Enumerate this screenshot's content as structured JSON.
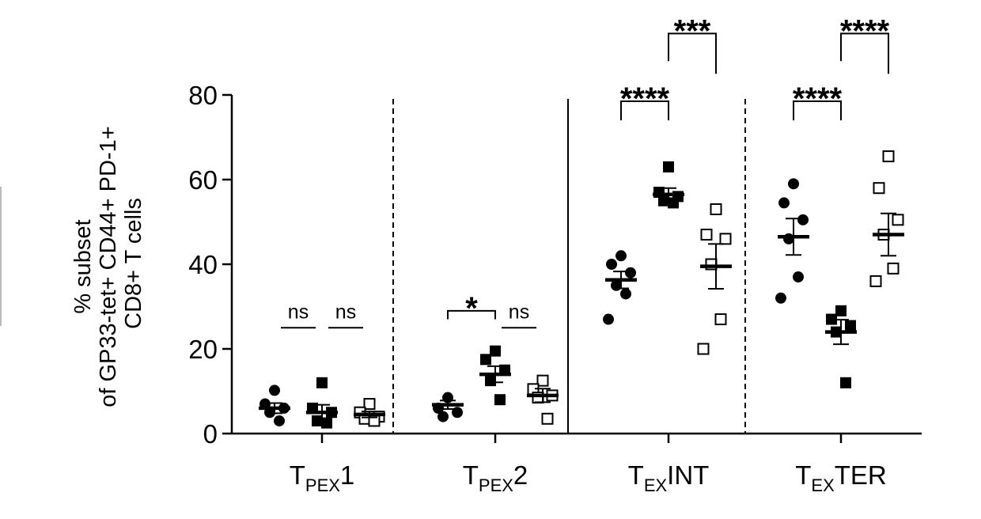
{
  "chart_data": {
    "type": "scatter",
    "ylabel_lines": [
      "% subset",
      "of GP33-tet+ CD44+ PD-1+",
      "CD8+ T cells"
    ],
    "ylim": [
      0,
      80
    ],
    "yticks": [
      0,
      20,
      40,
      60,
      80
    ],
    "categories": [
      {
        "main": "T",
        "sub": "PEX",
        "suffix": "1"
      },
      {
        "main": "T",
        "sub": "PEX",
        "suffix": "2"
      },
      {
        "main": "T",
        "sub": "EX",
        "suffix": "INT"
      },
      {
        "main": "T",
        "sub": "EX",
        "suffix": "TER"
      }
    ],
    "series_markers": [
      "filled-circle",
      "filled-square",
      "open-square"
    ],
    "groups": [
      {
        "points": [
          [
            10.2,
            7.0,
            6.0,
            5.0,
            3.0
          ],
          [
            12.0,
            6.0,
            5.0,
            3.0,
            2.5
          ],
          [
            7.0,
            5.0,
            4.0,
            3.5,
            3.0
          ]
        ],
        "mean": [
          6.0,
          5.0,
          4.5
        ],
        "sem": [
          1.2,
          1.8,
          0.7
        ]
      },
      {
        "points": [
          [
            8.5,
            6.0,
            5.0,
            4.0
          ],
          [
            19.5,
            17.5,
            15.0,
            12.5,
            8.0
          ],
          [
            12.5,
            10.5,
            9.0,
            8.5,
            3.5
          ]
        ],
        "mean": [
          6.8,
          14.0,
          9.0
        ],
        "sem": [
          1.0,
          1.9,
          1.6
        ]
      },
      {
        "points": [
          [
            42.0,
            40.0,
            38.0,
            35.0,
            33.0,
            27.0
          ],
          [
            63.0,
            57.0,
            56.0,
            55.0,
            54.5
          ],
          [
            53.0,
            47.0,
            46.0,
            40.0,
            27.0,
            20.0
          ]
        ],
        "mean": [
          36.3,
          56.5,
          39.5
        ],
        "sem": [
          2.0,
          1.5,
          5.3
        ]
      },
      {
        "points": [
          [
            59.0,
            54.5,
            50.5,
            46.0,
            37.0,
            32.0
          ],
          [
            29.0,
            27.0,
            25.5,
            24.0,
            12.0
          ],
          [
            65.5,
            58.0,
            50.5,
            47.0,
            39.0,
            36.0
          ]
        ],
        "mean": [
          46.5,
          24.0,
          47.0
        ],
        "sem": [
          4.3,
          2.9,
          5.0
        ]
      }
    ],
    "annotations": [
      {
        "group": 0,
        "from": 0,
        "to": 1,
        "text": "ns",
        "kind": "line",
        "y": 25
      },
      {
        "group": 0,
        "from": 1,
        "to": 2,
        "text": "ns",
        "kind": "line",
        "y": 25
      },
      {
        "group": 1,
        "from": 0,
        "to": 1,
        "text": "*",
        "kind": "bracket",
        "y": 29,
        "end_y": [
          27,
          27
        ]
      },
      {
        "group": 1,
        "from": 1,
        "to": 2,
        "text": "ns",
        "kind": "line",
        "y": 25
      },
      {
        "group": 2,
        "from": 0,
        "to": 1,
        "text": "****",
        "kind": "bracket",
        "y": 78.5,
        "end_y": [
          74,
          74
        ]
      },
      {
        "group": 2,
        "from": 1,
        "to": 2,
        "text": "***",
        "kind": "bracket",
        "y": 94.5,
        "end_y": [
          88,
          85
        ]
      },
      {
        "group": 3,
        "from": 0,
        "to": 1,
        "text": "****",
        "kind": "bracket",
        "y": 78.5,
        "end_y": [
          74,
          74
        ]
      },
      {
        "group": 3,
        "from": 1,
        "to": 2,
        "text": "****",
        "kind": "bracket",
        "y": 94.5,
        "end_y": [
          88,
          85
        ]
      }
    ],
    "separators": [
      "dashed",
      "solid",
      "dashed"
    ],
    "grid": false,
    "legend": "none"
  }
}
